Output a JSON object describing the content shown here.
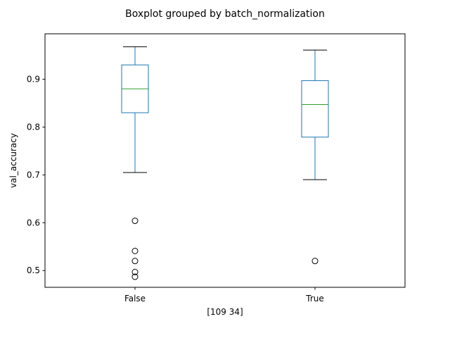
{
  "chart_data": {
    "type": "boxplot",
    "title": "Boxplot grouped by batch_normalization",
    "xlabel": "[109  34]",
    "ylabel": "val_accuracy",
    "categories": [
      "False",
      "True"
    ],
    "ylim": [
      0.465,
      0.995
    ],
    "yticks": [
      0.5,
      0.6,
      0.7,
      0.8,
      0.9
    ],
    "ytick_labels": [
      "0.5",
      "0.6",
      "0.7",
      "0.8",
      "0.9"
    ],
    "grid": false,
    "colors": {
      "box": "#1f77b4",
      "median": "#2ca02c",
      "whisker": "#1f77b4",
      "cap": "#000000",
      "flier": "#000000",
      "frame": "#000000"
    },
    "boxes": [
      {
        "name": "False",
        "whislo": 0.705,
        "q1": 0.83,
        "med": 0.88,
        "q3": 0.93,
        "whishi": 0.968,
        "fliers": [
          0.604,
          0.541,
          0.52,
          0.497,
          0.487
        ]
      },
      {
        "name": "True",
        "whislo": 0.69,
        "q1": 0.779,
        "med": 0.847,
        "q3": 0.897,
        "whishi": 0.961,
        "fliers": [
          0.52
        ]
      }
    ]
  }
}
